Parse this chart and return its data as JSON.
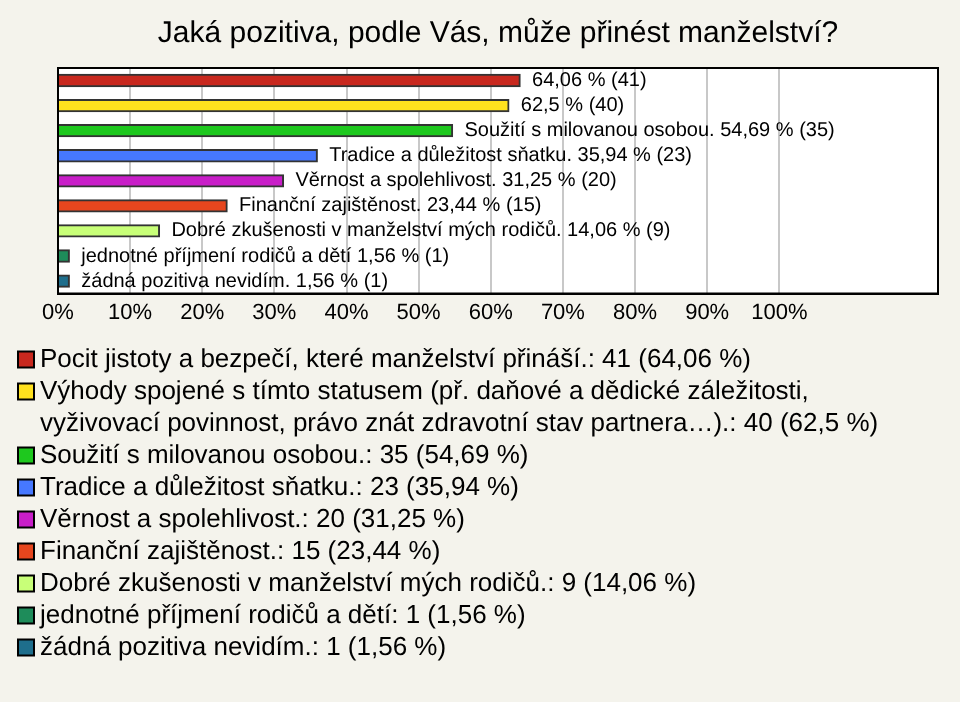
{
  "chart_data": {
    "type": "bar",
    "orientation": "horizontal",
    "title": "Jaká pozitiva, podle Vás, může přinést manželství?",
    "categories": [
      null,
      null,
      null,
      null,
      null,
      null,
      null,
      null,
      null
    ],
    "series": [
      {
        "name": "Pocit jistoty a bezpečí, které manželství přináší.: 41 (64,06 %)",
        "color": "#c8281e",
        "values": [
          64.06,
          null,
          null,
          null,
          null,
          null,
          null,
          null,
          null
        ],
        "value_labels": [
          "64,06 % (41)",
          null,
          null,
          null,
          null,
          null,
          null,
          null,
          null
        ]
      },
      {
        "name": "Výhody spojené s tímto statusem (př. daňové a dědické záležitosti, vyživovací povinnost, právo znát zdravotní stav partnera…).: 40 (62,5 %)",
        "color": "#ffe11e",
        "values": [
          null,
          62.5,
          null,
          null,
          null,
          null,
          null,
          null,
          null
        ],
        "value_labels": [
          null,
          "62,5 % (40)",
          null,
          null,
          null,
          null,
          null,
          null,
          null
        ]
      },
      {
        "name": "Soužití s milovanou osobou.: 35 (54,69 %)",
        "color": "#1ec81e",
        "values": [
          null,
          null,
          54.69,
          null,
          null,
          null,
          null,
          null,
          null
        ],
        "value_labels": [
          null,
          null,
          "Soužití s milovanou osobou. 54,69 % (35)",
          null,
          null,
          null,
          null,
          null,
          null
        ]
      },
      {
        "name": "Tradice a důležitost sňatku.: 23 (35,94 %)",
        "color": "#4678ff",
        "values": [
          null,
          null,
          null,
          35.94,
          null,
          null,
          null,
          null,
          null
        ],
        "value_labels": [
          null,
          null,
          null,
          "Tradice a důležitost sňatku. 35,94 % (23)",
          null,
          null,
          null,
          null,
          null
        ]
      },
      {
        "name": "Věrnost a spolehlivost.: 20 (31,25 %)",
        "color": "#c81ec8",
        "values": [
          null,
          null,
          null,
          null,
          31.25,
          null,
          null,
          null,
          null
        ],
        "value_labels": [
          null,
          null,
          null,
          null,
          "Věrnost a spolehlivost. 31,25 % (20)",
          null,
          null,
          null,
          null
        ]
      },
      {
        "name": "Finanční zajištěnost.: 15 (23,44 %)",
        "color": "#e6461e",
        "values": [
          null,
          null,
          null,
          null,
          null,
          23.44,
          null,
          null,
          null
        ],
        "value_labels": [
          null,
          null,
          null,
          null,
          null,
          "Finanční zajištěnost. 23,44 % (15)",
          null,
          null,
          null
        ]
      },
      {
        "name": "Dobré zkušenosti v manželství mých rodičů.: 9 (14,06 %)",
        "color": "#c8ff78",
        "values": [
          null,
          null,
          null,
          null,
          null,
          null,
          14.06,
          null,
          null
        ],
        "value_labels": [
          null,
          null,
          null,
          null,
          null,
          null,
          "Dobré zkušenosti v manželství mých rodičů. 14,06 % (9)",
          null,
          null
        ]
      },
      {
        "name": "jednotné příjmení rodičů a dětí: 1 (1,56 %)",
        "color": "#1e8c5a",
        "values": [
          null,
          null,
          null,
          null,
          null,
          null,
          null,
          1.56,
          null
        ],
        "value_labels": [
          null,
          null,
          null,
          null,
          null,
          null,
          null,
          "jednotné příjmení rodičů a dětí 1,56 % (1)",
          null
        ]
      },
      {
        "name": "žádná pozitiva nevidím.: 1 (1,56 %)",
        "color": "#1e6e8c",
        "values": [
          null,
          null,
          null,
          null,
          null,
          null,
          null,
          null,
          1.56
        ],
        "value_labels": [
          null,
          null,
          null,
          null,
          null,
          null,
          null,
          null,
          "žádná pozitiva nevidím. 1,56 % (1)"
        ]
      }
    ],
    "xlim": [
      0,
      122
    ],
    "xticks": [
      {
        "value": 0,
        "label": "0%"
      },
      {
        "value": 10,
        "label": "10%"
      },
      {
        "value": 20,
        "label": "20%"
      },
      {
        "value": 30,
        "label": "30%"
      },
      {
        "value": 40,
        "label": "40%"
      },
      {
        "value": 50,
        "label": "50%"
      },
      {
        "value": 60,
        "label": "60%"
      },
      {
        "value": 70,
        "label": "70%"
      },
      {
        "value": 80,
        "label": "80%"
      },
      {
        "value": 90,
        "label": "90%"
      },
      {
        "value": 100,
        "label": "100%"
      }
    ],
    "tick_labels": "x",
    "grid": "x",
    "legend": "bottom"
  }
}
